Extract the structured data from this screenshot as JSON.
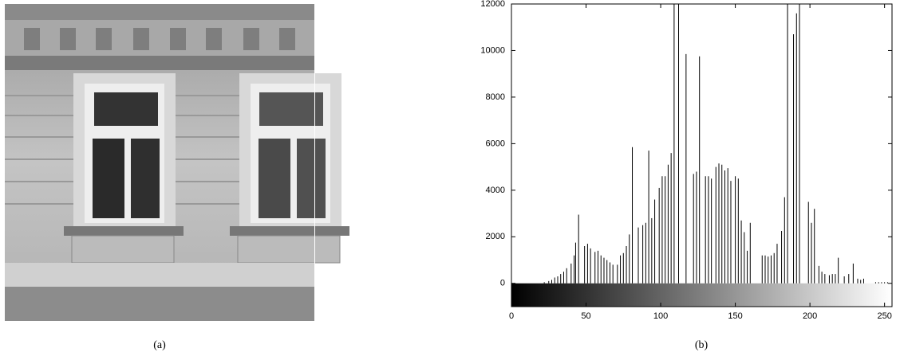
{
  "captions": [
    "(a)",
    "(b)"
  ],
  "chart_data": {
    "type": "stem",
    "color": "#000000",
    "x": [
      22,
      25,
      27,
      29,
      31,
      33,
      35,
      37,
      40,
      42,
      43,
      45,
      49,
      51,
      53,
      56,
      58,
      60,
      62,
      64,
      66,
      68,
      71,
      73,
      75,
      77,
      79,
      81,
      85,
      88,
      90,
      92,
      94,
      96,
      99,
      101,
      103,
      105,
      107,
      109,
      112,
      117,
      122,
      124,
      126,
      130,
      132,
      134,
      137,
      139,
      141,
      143,
      145,
      147,
      150,
      152,
      154,
      156,
      158,
      160,
      168,
      170,
      172,
      174,
      176,
      178,
      181,
      183,
      185,
      189,
      191,
      193,
      199,
      201,
      203,
      206,
      208,
      210,
      213,
      215,
      217,
      219,
      223,
      226,
      229,
      232,
      234,
      236,
      244,
      246,
      248,
      250,
      252
    ],
    "values": [
      50,
      100,
      150,
      250,
      300,
      400,
      500,
      650,
      850,
      1200,
      1750,
      2950,
      1600,
      1700,
      1500,
      1350,
      1400,
      1200,
      1100,
      1000,
      900,
      800,
      800,
      1200,
      1300,
      1600,
      2100,
      5850,
      2400,
      2500,
      2600,
      5700,
      2800,
      3600,
      4100,
      4600,
      4600,
      5100,
      5600,
      12000,
      12000,
      9850,
      4700,
      4800,
      9750,
      4600,
      4600,
      4500,
      5000,
      5150,
      5100,
      4850,
      4950,
      4400,
      4600,
      4500,
      2700,
      2200,
      1400,
      2600,
      1200,
      1200,
      1150,
      1200,
      1300,
      1700,
      2250,
      3700,
      12000,
      10700,
      11600,
      12000,
      3500,
      2600,
      3200,
      750,
      500,
      400,
      350,
      400,
      400,
      1100,
      300,
      400,
      850,
      200,
      150,
      200,
      50,
      50,
      50,
      50,
      50
    ],
    "xlim": [
      0,
      255
    ],
    "ylim": [
      -1000,
      12000
    ],
    "xticks": [
      0,
      50,
      100,
      150,
      200,
      250
    ],
    "yticks": [
      0,
      2000,
      4000,
      6000,
      8000,
      10000,
      12000
    ],
    "colorbar": true
  }
}
